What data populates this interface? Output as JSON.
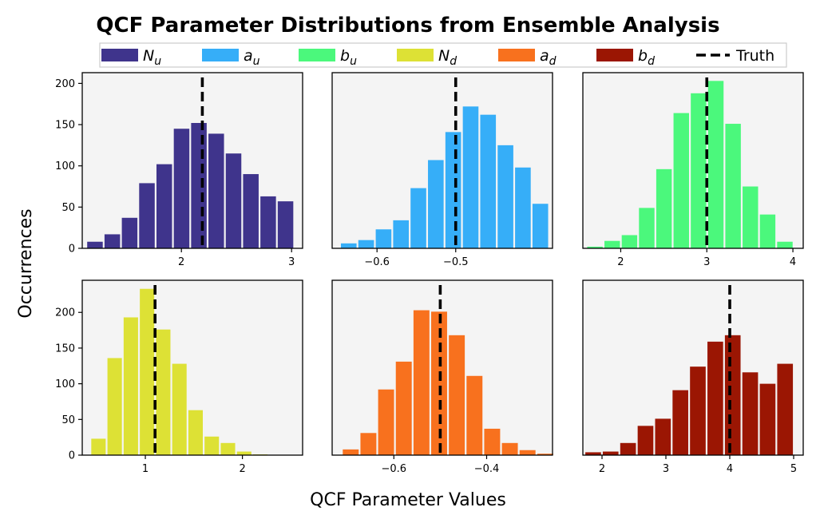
{
  "chart_data": {
    "type": "bar",
    "title": "QCF Parameter Distributions from Ensemble Analysis",
    "xlabel": "QCF Parameter Values",
    "ylabel": "Occurrences",
    "legend": {
      "placement": "top-center",
      "entries": [
        {
          "base": "N",
          "sub": "u",
          "color": "#3f348c",
          "kind": "patch"
        },
        {
          "base": "a",
          "sub": "u",
          "color": "#36aef8",
          "kind": "patch"
        },
        {
          "base": "b",
          "sub": "u",
          "color": "#4bf87c",
          "kind": "patch"
        },
        {
          "base": "N",
          "sub": "d",
          "color": "#dde135",
          "kind": "patch"
        },
        {
          "base": "a",
          "sub": "d",
          "color": "#f8711e",
          "kind": "patch"
        },
        {
          "base": "b",
          "sub": "d",
          "color": "#9b1603",
          "kind": "patch"
        },
        {
          "base": "Truth",
          "sub": "",
          "color": "#000000",
          "kind": "line"
        }
      ]
    },
    "panels": [
      {
        "parameter": "N_u",
        "color": "#3f348c",
        "truth": 2.19,
        "xlim": [
          1.1,
          3.1
        ],
        "ylim": [
          0,
          213
        ],
        "xticks": [
          2,
          3
        ],
        "xtick_labels": [
          "2",
          "3"
        ],
        "yticks": [
          0,
          50,
          100,
          150,
          200
        ],
        "ytick_labels": [
          "0",
          "50",
          "100",
          "150",
          "200"
        ],
        "bin_start": 1.137,
        "bin_width": 0.1572,
        "values": [
          8,
          17,
          37,
          79,
          102,
          145,
          152,
          139,
          115,
          90,
          63,
          57
        ]
      },
      {
        "parameter": "a_u",
        "color": "#36aef8",
        "truth": -0.5,
        "xlim": [
          -0.657,
          -0.377
        ],
        "ylim": [
          0,
          213
        ],
        "xticks": [
          -0.6,
          -0.5
        ],
        "xtick_labels": [
          "−0.6",
          "−0.5"
        ],
        "yticks": [
          0,
          50,
          100,
          150,
          200
        ],
        "ytick_labels": [],
        "bin_start": -0.647,
        "bin_width": 0.02213,
        "values": [
          6,
          10,
          23,
          34,
          73,
          107,
          141,
          172,
          162,
          125,
          98,
          54
        ]
      },
      {
        "parameter": "b_u",
        "color": "#4bf87c",
        "truth": 3.0,
        "xlim": [
          1.56,
          4.12
        ],
        "ylim": [
          0,
          213
        ],
        "xticks": [
          2,
          3,
          4
        ],
        "xtick_labels": [
          "2",
          "3",
          "4"
        ],
        "yticks": [
          0,
          50,
          100,
          150,
          200
        ],
        "ytick_labels": [],
        "bin_start": 1.6,
        "bin_width": 0.2006,
        "values": [
          2,
          9,
          16,
          49,
          96,
          164,
          188,
          203,
          151,
          75,
          41,
          8
        ]
      },
      {
        "parameter": "N_d",
        "color": "#dde135",
        "truth": 1.1,
        "xlim": [
          0.35,
          2.62
        ],
        "ylim": [
          0,
          245
        ],
        "xticks": [
          1,
          2
        ],
        "xtick_labels": [
          "1",
          "2"
        ],
        "yticks": [
          0,
          50,
          100,
          150,
          200
        ],
        "ytick_labels": [
          "0",
          "50",
          "100",
          "150",
          "200"
        ],
        "bin_start": 0.434,
        "bin_width": 0.1667,
        "values": [
          23,
          136,
          193,
          233,
          176,
          128,
          63,
          26,
          17,
          5,
          1,
          0
        ]
      },
      {
        "parameter": "a_d",
        "color": "#f8711e",
        "truth": -0.5,
        "xlim": [
          -0.733,
          -0.258
        ],
        "ylim": [
          0,
          245
        ],
        "xticks": [
          -0.6,
          -0.4
        ],
        "xtick_labels": [
          "−0.6",
          "−0.4"
        ],
        "yticks": [
          0,
          50,
          100,
          150,
          200
        ],
        "ytick_labels": [],
        "bin_start": -0.712,
        "bin_width": 0.03811,
        "values": [
          8,
          31,
          92,
          131,
          203,
          201,
          168,
          111,
          37,
          17,
          7,
          2
        ]
      },
      {
        "parameter": "b_d",
        "color": "#9b1603",
        "truth": 4.0,
        "xlim": [
          1.7,
          5.15
        ],
        "ylim": [
          0,
          245
        ],
        "xticks": [
          2,
          3,
          4,
          5
        ],
        "xtick_labels": [
          "2",
          "3",
          "4",
          "5"
        ],
        "yticks": [
          0,
          50,
          100,
          150,
          200
        ],
        "ytick_labels": [],
        "bin_start": 1.725,
        "bin_width": 0.2731,
        "values": [
          4,
          5,
          17,
          41,
          51,
          91,
          124,
          159,
          168,
          116,
          100,
          128
        ]
      }
    ]
  }
}
